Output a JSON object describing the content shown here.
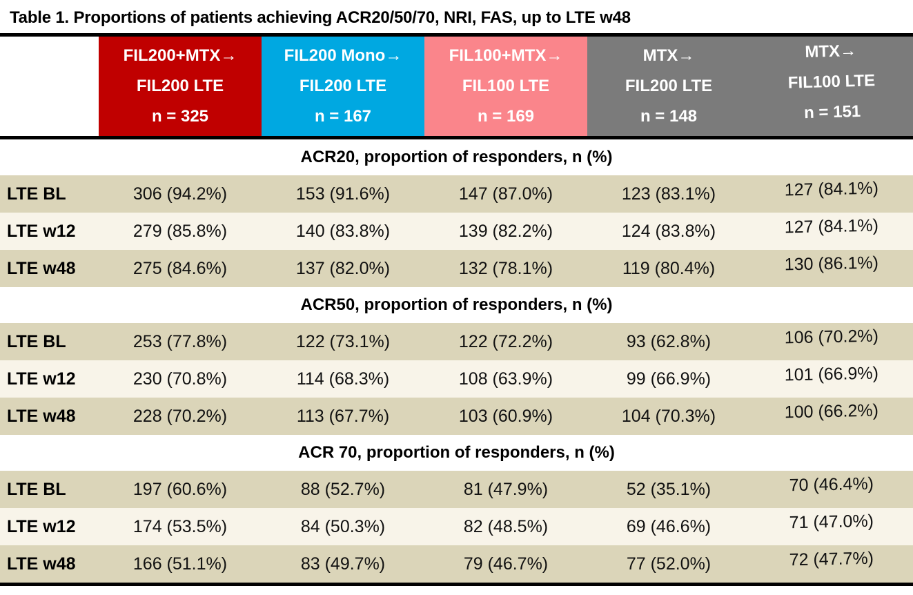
{
  "title": "Table 1. Proportions of patients achieving ACR20/50/70, NRI, FAS, up to LTE w48",
  "colors": {
    "col_fil200_mtx": "#c00000",
    "col_fil200_mono": "#00a8e1",
    "col_fil100_mtx": "#fa858b",
    "col_mtx": "#7b7b7b",
    "row_dark": "#dbd5b9",
    "row_light": "#f8f4e9",
    "header_text": "#ffffff",
    "rule": "#000000"
  },
  "columns": [
    {
      "line1": "FIL200+MTX→",
      "line2": "FIL200 LTE",
      "line3": "n = 325",
      "color": "#c00000"
    },
    {
      "line1": "FIL200 Mono→",
      "line2": "FIL200 LTE",
      "line3": "n = 167",
      "color": "#00a8e1"
    },
    {
      "line1": "FIL100+MTX→",
      "line2": "FIL100 LTE",
      "line3": "n = 169",
      "color": "#fa858b"
    },
    {
      "line1": "MTX→",
      "line2": "FIL200 LTE",
      "line3": "n = 148",
      "color": "#7b7b7b"
    },
    {
      "line1": "MTX→",
      "line2": "FIL100 LTE",
      "line3": "n = 151",
      "color": "#7b7b7b"
    }
  ],
  "sections": [
    {
      "header": "ACR20, proportion of responders, n (%)",
      "rows": [
        {
          "label": "LTE BL",
          "values": [
            "306 (94.2%)",
            "153 (91.6%)",
            "147 (87.0%)",
            "123 (83.1%)",
            "127 (84.1%)"
          ]
        },
        {
          "label": "LTE w12",
          "values": [
            "279 (85.8%)",
            "140 (83.8%)",
            "139 (82.2%)",
            "124 (83.8%)",
            "127 (84.1%)"
          ]
        },
        {
          "label": "LTE w48",
          "values": [
            "275 (84.6%)",
            "137 (82.0%)",
            "132 (78.1%)",
            "119 (80.4%)",
            "130 (86.1%)"
          ]
        }
      ]
    },
    {
      "header": "ACR50, proportion of responders, n (%)",
      "rows": [
        {
          "label": "LTE BL",
          "values": [
            "253 (77.8%)",
            "122 (73.1%)",
            "122 (72.2%)",
            "93 (62.8%)",
            "106 (70.2%)"
          ]
        },
        {
          "label": "LTE w12",
          "values": [
            "230 (70.8%)",
            "114 (68.3%)",
            "108 (63.9%)",
            "99 (66.9%)",
            "101 (66.9%)"
          ]
        },
        {
          "label": "LTE w48",
          "values": [
            "228 (70.2%)",
            "113 (67.7%)",
            "103 (60.9%)",
            "104 (70.3%)",
            "100 (66.2%)"
          ]
        }
      ]
    },
    {
      "header": "ACR 70, proportion of responders, n (%)",
      "rows": [
        {
          "label": "LTE BL",
          "values": [
            "197 (60.6%)",
            "88 (52.7%)",
            "81 (47.9%)",
            "52 (35.1%)",
            "70 (46.4%)"
          ]
        },
        {
          "label": "LTE w12",
          "values": [
            "174 (53.5%)",
            "84 (50.3%)",
            "82 (48.5%)",
            "69 (46.6%)",
            "71 (47.0%)"
          ]
        },
        {
          "label": "LTE w48",
          "values": [
            "166 (51.1%)",
            "83 (49.7%)",
            "79 (46.7%)",
            "77 (52.0%)",
            "72 (47.7%)"
          ]
        }
      ]
    }
  ],
  "chart_data": {
    "type": "table",
    "title": "Table 1. Proportions of patients achieving ACR20/50/70, NRI, FAS, up to LTE w48",
    "columns": [
      "FIL200+MTX → FIL200 LTE, n = 325",
      "FIL200 Mono → FIL200 LTE, n = 167",
      "FIL100+MTX → FIL100 LTE, n = 169",
      "MTX → FIL200 LTE, n = 148",
      "MTX → FIL100 LTE, n = 151"
    ],
    "row_labels": [
      "LTE BL",
      "LTE w12",
      "LTE w48"
    ],
    "sections": [
      {
        "name": "ACR20, proportion of responders, n (%)",
        "rows": [
          {
            "label": "LTE BL",
            "n": [
              306,
              153,
              147,
              123,
              127
            ],
            "pct": [
              94.2,
              91.6,
              87.0,
              83.1,
              84.1
            ]
          },
          {
            "label": "LTE w12",
            "n": [
              279,
              140,
              139,
              124,
              127
            ],
            "pct": [
              85.8,
              83.8,
              82.2,
              83.8,
              84.1
            ]
          },
          {
            "label": "LTE w48",
            "n": [
              275,
              137,
              132,
              119,
              130
            ],
            "pct": [
              84.6,
              82.0,
              78.1,
              80.4,
              86.1
            ]
          }
        ]
      },
      {
        "name": "ACR50, proportion of responders, n (%)",
        "rows": [
          {
            "label": "LTE BL",
            "n": [
              253,
              122,
              122,
              93,
              106
            ],
            "pct": [
              77.8,
              73.1,
              72.2,
              62.8,
              70.2
            ]
          },
          {
            "label": "LTE w12",
            "n": [
              230,
              114,
              108,
              99,
              101
            ],
            "pct": [
              70.8,
              68.3,
              63.9,
              66.9,
              66.9
            ]
          },
          {
            "label": "LTE w48",
            "n": [
              228,
              113,
              103,
              104,
              100
            ],
            "pct": [
              70.2,
              67.7,
              60.9,
              70.3,
              66.2
            ]
          }
        ]
      },
      {
        "name": "ACR 70, proportion of responders, n (%)",
        "rows": [
          {
            "label": "LTE BL",
            "n": [
              197,
              88,
              81,
              52,
              70
            ],
            "pct": [
              60.6,
              52.7,
              47.9,
              35.1,
              46.4
            ]
          },
          {
            "label": "LTE w12",
            "n": [
              174,
              84,
              82,
              69,
              71
            ],
            "pct": [
              53.5,
              50.3,
              48.5,
              46.6,
              47.0
            ]
          },
          {
            "label": "LTE w48",
            "n": [
              166,
              83,
              79,
              77,
              72
            ],
            "pct": [
              51.1,
              49.7,
              46.7,
              52.0,
              47.7
            ]
          }
        ]
      }
    ]
  }
}
